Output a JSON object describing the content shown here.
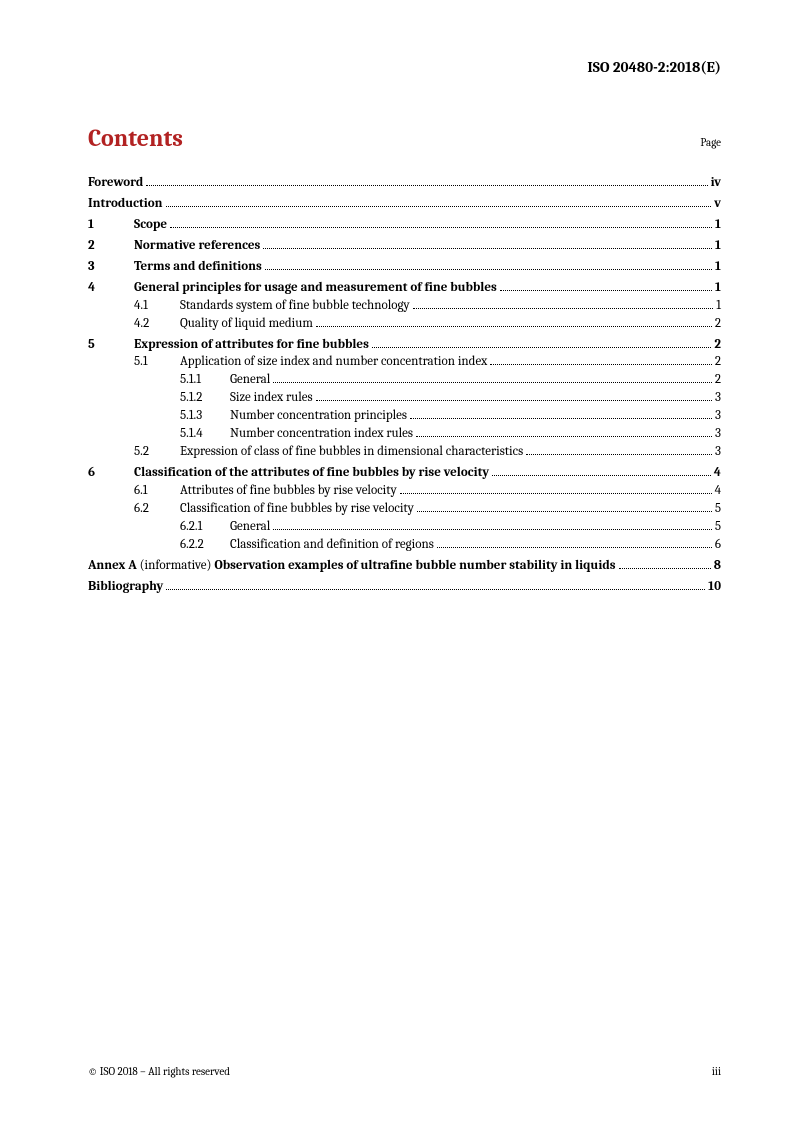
{
  "header": {
    "doc_id": "ISO 20480-2:2018(E)"
  },
  "contents": {
    "title": "Contents",
    "page_label": "Page"
  },
  "toc": [
    {
      "level": 0,
      "num": "",
      "label": "Foreword",
      "page": "iv",
      "bold": true
    },
    {
      "level": 0,
      "num": "",
      "label": "Introduction",
      "page": "v",
      "bold": true
    },
    {
      "level": 1,
      "num": "1",
      "label": "Scope",
      "page": "1",
      "bold": true
    },
    {
      "level": 1,
      "num": "2",
      "label": "Normative references",
      "page": "1",
      "bold": true
    },
    {
      "level": 1,
      "num": "3",
      "label": "Terms and definitions",
      "page": "1",
      "bold": true
    },
    {
      "level": 1,
      "num": "4",
      "label": "General principles for usage and measurement of fine bubbles",
      "page": "1",
      "bold": true
    },
    {
      "level": 2,
      "num": "4.1",
      "label": "Standards system of fine bubble technology",
      "page": "1",
      "bold": false
    },
    {
      "level": 2,
      "num": "4.2",
      "label": "Quality of liquid medium",
      "page": "2",
      "bold": false
    },
    {
      "level": 1,
      "num": "5",
      "label": "Expression of attributes for fine bubbles",
      "page": "2",
      "bold": true
    },
    {
      "level": 2,
      "num": "5.1",
      "label": "Application of size index and number concentration index",
      "page": "2",
      "bold": false
    },
    {
      "level": 3,
      "num": "5.1.1",
      "label": "General",
      "page": "2",
      "bold": false
    },
    {
      "level": 3,
      "num": "5.1.2",
      "label": "Size index rules",
      "page": "3",
      "bold": false
    },
    {
      "level": 3,
      "num": "5.1.3",
      "label": "Number concentration principles",
      "page": "3",
      "bold": false
    },
    {
      "level": 3,
      "num": "5.1.4",
      "label": "Number concentration index rules",
      "page": "3",
      "bold": false
    },
    {
      "level": 2,
      "num": "5.2",
      "label": "Expression of class of fine bubbles in dimensional characteristics",
      "page": "3",
      "bold": false
    },
    {
      "level": 1,
      "num": "6",
      "label": "Classification of the attributes of fine bubbles by rise velocity",
      "page": "4",
      "bold": true
    },
    {
      "level": 2,
      "num": "6.1",
      "label": "Attributes of fine bubbles by rise velocity",
      "page": "4",
      "bold": false
    },
    {
      "level": 2,
      "num": "6.2",
      "label": "Classification of fine bubbles by rise velocity",
      "page": "5",
      "bold": false
    },
    {
      "level": 3,
      "num": "6.2.1",
      "label": "General",
      "page": "5",
      "bold": false
    },
    {
      "level": 3,
      "num": "6.2.2",
      "label": "Classification and definition of regions",
      "page": "6",
      "bold": false
    }
  ],
  "annex": {
    "prefix": "Annex A",
    "mid": " (informative) ",
    "label": "Observation examples of ultrafine bubble number stability in liquids",
    "page": "8"
  },
  "bibliography": {
    "label": "Bibliography",
    "page": "10"
  },
  "footer": {
    "copyright": "© ISO 2018 – All rights reserved",
    "page_num": "iii"
  }
}
